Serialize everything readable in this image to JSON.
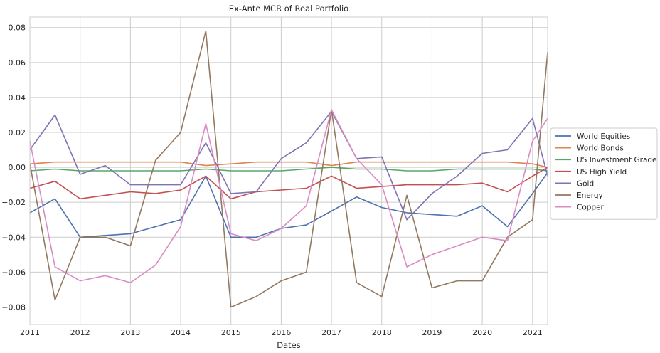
{
  "chart_data": {
    "type": "line",
    "title": "Ex-Ante MCR of Real Portfolio",
    "xlabel": "Dates",
    "ylabel": "",
    "xlim": [
      2011.0,
      2021.3
    ],
    "ylim": [
      -0.09,
      0.086
    ],
    "x_ticks": [
      2011,
      2012,
      2013,
      2014,
      2015,
      2016,
      2017,
      2018,
      2019,
      2020,
      2021
    ],
    "y_ticks": [
      -0.08,
      -0.06,
      -0.04,
      -0.02,
      0.0,
      0.02,
      0.04,
      0.06,
      0.08
    ],
    "y_tick_labels": [
      "−0.08",
      "−0.06",
      "−0.04",
      "−0.02",
      "0.00",
      "0.02",
      "0.04",
      "0.06",
      "0.08"
    ],
    "grid": true,
    "legend_position": "right",
    "x": [
      2011.0,
      2011.5,
      2012.0,
      2012.5,
      2013.0,
      2013.5,
      2014.0,
      2014.5,
      2015.0,
      2015.5,
      2016.0,
      2016.5,
      2017.0,
      2017.5,
      2018.0,
      2018.5,
      2019.0,
      2019.5,
      2020.0,
      2020.5,
      2021.0,
      2021.3
    ],
    "series": [
      {
        "name": "World Equities",
        "color": "#4c72b0",
        "values": [
          -0.026,
          -0.018,
          -0.04,
          -0.039,
          -0.038,
          -0.034,
          -0.03,
          -0.005,
          -0.04,
          -0.04,
          -0.035,
          -0.033,
          -0.025,
          -0.017,
          -0.023,
          -0.026,
          -0.027,
          -0.028,
          -0.022,
          -0.034,
          -0.015,
          -0.003
        ]
      },
      {
        "name": "World Bonds",
        "color": "#dd8452",
        "values": [
          0.002,
          0.003,
          0.003,
          0.003,
          0.003,
          0.003,
          0.003,
          0.001,
          0.002,
          0.003,
          0.003,
          0.003,
          0.001,
          0.003,
          0.003,
          0.003,
          0.003,
          0.003,
          0.003,
          0.003,
          0.002,
          0.0
        ]
      },
      {
        "name": "US Investment Grade",
        "color": "#55a868",
        "values": [
          -0.002,
          -0.001,
          -0.002,
          -0.002,
          -0.002,
          -0.002,
          -0.002,
          -0.001,
          -0.002,
          -0.002,
          -0.002,
          -0.001,
          0.0,
          -0.001,
          -0.001,
          -0.002,
          -0.002,
          -0.001,
          -0.001,
          -0.001,
          -0.001,
          -0.002
        ]
      },
      {
        "name": "US High Yield",
        "color": "#c44e52",
        "values": [
          -0.012,
          -0.008,
          -0.018,
          -0.016,
          -0.014,
          -0.015,
          -0.013,
          -0.005,
          -0.018,
          -0.014,
          -0.013,
          -0.012,
          -0.005,
          -0.012,
          -0.011,
          -0.01,
          -0.01,
          -0.01,
          -0.009,
          -0.014,
          -0.005,
          0.0
        ]
      },
      {
        "name": "Gold",
        "color": "#8172b3",
        "values": [
          0.01,
          0.03,
          -0.004,
          0.001,
          -0.01,
          -0.01,
          -0.01,
          0.014,
          -0.015,
          -0.014,
          0.005,
          0.014,
          0.032,
          0.005,
          0.006,
          -0.03,
          -0.015,
          -0.005,
          0.008,
          0.01,
          0.028,
          -0.005
        ]
      },
      {
        "name": "Energy",
        "color": "#937860",
        "values": [
          0.002,
          -0.076,
          -0.04,
          -0.04,
          -0.045,
          0.004,
          0.02,
          0.078,
          -0.08,
          -0.074,
          -0.065,
          -0.06,
          0.033,
          -0.066,
          -0.074,
          -0.016,
          -0.069,
          -0.065,
          -0.065,
          -0.04,
          -0.03,
          0.066
        ]
      },
      {
        "name": "Copper",
        "color": "#da8bc3",
        "values": [
          0.015,
          -0.057,
          -0.065,
          -0.062,
          -0.066,
          -0.056,
          -0.034,
          0.025,
          -0.038,
          -0.042,
          -0.035,
          -0.022,
          0.033,
          0.005,
          -0.01,
          -0.057,
          -0.05,
          -0.045,
          -0.04,
          -0.042,
          0.015,
          0.028
        ]
      }
    ]
  }
}
